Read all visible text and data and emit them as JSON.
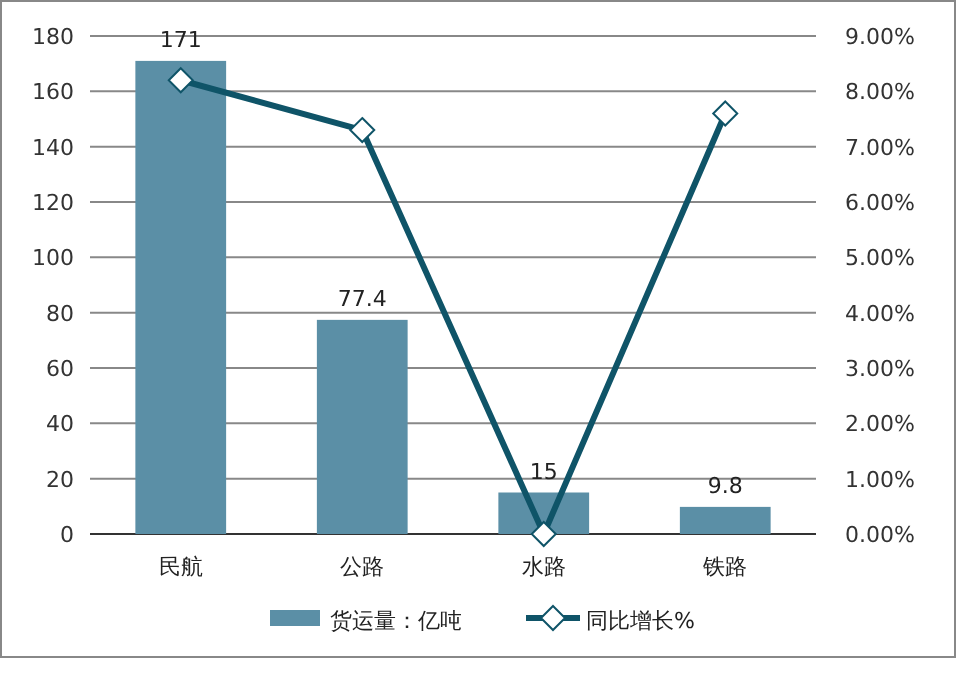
{
  "chart_data": {
    "type": "bar",
    "categories": [
      "民航",
      "公路",
      "水路",
      "铁路"
    ],
    "series": [
      {
        "name": "货运量：亿吨",
        "color": "#5b8fa6",
        "values": [
          171,
          77.4,
          15,
          9.8
        ],
        "value_labels": [
          "171",
          "77.4",
          "15",
          "9.8"
        ]
      },
      {
        "name": "同比增长%",
        "type": "line",
        "axis": "y2",
        "color": "#0f5468",
        "values": [
          8.2,
          7.3,
          0,
          7.6
        ],
        "marker": "diamond"
      }
    ],
    "ylim": [
      0,
      180
    ],
    "yticks": [
      0,
      20,
      40,
      60,
      80,
      100,
      120,
      140,
      160,
      180
    ],
    "y2lim": [
      0,
      9
    ],
    "y2ticks": [
      {
        "value": 0,
        "label": "0.00%"
      },
      {
        "value": 1,
        "label": "1.00%"
      },
      {
        "value": 2,
        "label": "2.00%"
      },
      {
        "value": 3,
        "label": "3.00%"
      },
      {
        "value": 4,
        "label": "4.00%"
      },
      {
        "value": 5,
        "label": "5.00%"
      },
      {
        "value": 6,
        "label": "6.00%"
      },
      {
        "value": 7,
        "label": "7.00%"
      },
      {
        "value": 8,
        "label": "8.00%"
      },
      {
        "value": 9,
        "label": "9.00%"
      }
    ],
    "grid": "y",
    "legend": "bottom"
  }
}
